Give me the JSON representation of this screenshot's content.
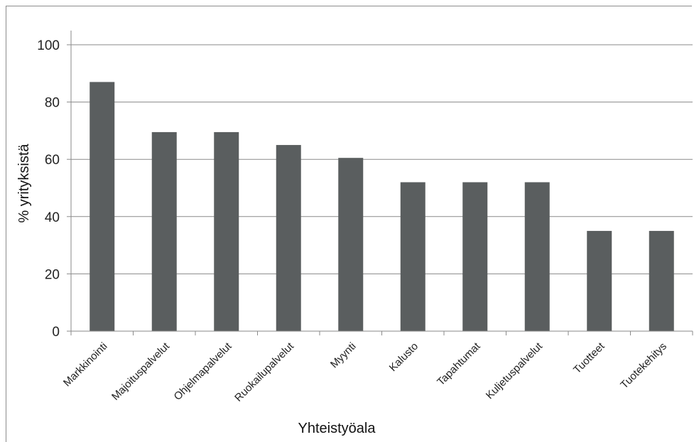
{
  "chart_data": {
    "type": "bar",
    "title": "",
    "xlabel": "Yhteistyöala",
    "ylabel": "% yrityksistä",
    "ylim": [
      0,
      100
    ],
    "yticks": [
      0,
      20,
      40,
      60,
      80,
      100
    ],
    "grid": true,
    "bar_color": "#5a5e5f",
    "categories": [
      "Markkinointi",
      "Majoituspalvelut",
      "Ohjelmapalvelut",
      "Ruokailupalvelut",
      "Myynti",
      "Kalusto",
      "Tapahtumat",
      "Kuljetuspalvelut",
      "Tuotteet",
      "Tuotekehitys"
    ],
    "values": [
      87,
      69.5,
      69.5,
      65,
      60.5,
      52,
      52,
      52,
      35,
      35
    ]
  }
}
